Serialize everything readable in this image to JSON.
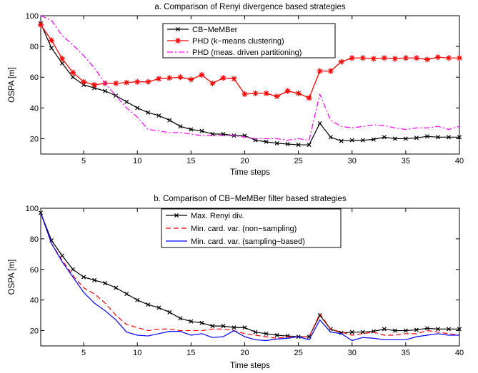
{
  "chart_data": [
    {
      "type": "line",
      "title": "a. Comparison of Renyi divergence based strategies",
      "xlabel": "Time steps",
      "ylabel": "OSPA [m]",
      "xlim": [
        1,
        40
      ],
      "ylim": [
        10,
        100
      ],
      "xticks": [
        5,
        10,
        15,
        20,
        25,
        30,
        35,
        40
      ],
      "yticks": [
        20,
        40,
        60,
        80,
        100
      ],
      "grid": false,
      "legend_position": "top-center",
      "x": [
        1,
        2,
        3,
        4,
        5,
        6,
        7,
        8,
        9,
        10,
        11,
        12,
        13,
        14,
        15,
        16,
        17,
        18,
        19,
        20,
        21,
        22,
        23,
        24,
        25,
        26,
        27,
        28,
        29,
        30,
        31,
        32,
        33,
        34,
        35,
        36,
        37,
        38,
        39,
        40
      ],
      "series": [
        {
          "name": "CB−MeMBer",
          "color": "#000000",
          "dash": "solid",
          "marker": "x",
          "values": [
            95,
            79,
            69,
            60,
            55,
            53,
            51,
            48,
            44,
            40,
            37,
            35,
            32,
            28,
            26,
            25,
            23,
            23,
            22,
            22,
            19,
            18,
            17,
            16.5,
            16,
            16,
            30,
            21,
            18.5,
            19,
            19,
            19.5,
            21,
            20,
            20,
            20.5,
            21.5,
            21,
            21,
            21
          ]
        },
        {
          "name": "PHD (k−means clustering)",
          "color": "#ff0000",
          "dash": "solid",
          "marker": "star",
          "values": [
            94,
            84,
            72,
            63,
            57,
            55,
            56,
            56,
            56.5,
            57,
            57,
            59,
            59.5,
            60,
            58.5,
            61.5,
            56,
            59.5,
            59,
            49,
            49.5,
            49.5,
            47.5,
            51,
            49.5,
            46.5,
            64,
            64,
            70,
            72.5,
            72.5,
            72,
            72.5,
            72,
            72.5,
            72.5,
            71.5,
            73,
            72.5,
            72.5
          ]
        },
        {
          "name": "PHD (meas. driven partitioning)",
          "color": "#ff00ff",
          "dash": "dashdot",
          "marker": "none",
          "values": [
            100,
            97,
            87,
            81,
            74,
            66,
            56,
            48,
            40,
            34,
            26,
            25,
            24,
            24,
            23,
            22,
            22,
            22,
            22,
            21,
            20,
            20,
            20,
            19,
            20,
            19,
            49,
            32,
            28,
            27,
            28,
            29,
            28.5,
            27,
            26,
            27,
            27,
            28,
            26,
            28
          ]
        }
      ]
    },
    {
      "type": "line",
      "title": "b. Comparison of CB−MeMBer filter based strategies",
      "xlabel": "Time steps",
      "ylabel": "OSPA [m]",
      "xlim": [
        1,
        40
      ],
      "ylim": [
        10,
        100
      ],
      "xticks": [
        5,
        10,
        15,
        20,
        25,
        30,
        35,
        40
      ],
      "yticks": [
        20,
        40,
        60,
        80,
        100
      ],
      "grid": false,
      "legend_position": "top-center",
      "x": [
        1,
        2,
        3,
        4,
        5,
        6,
        7,
        8,
        9,
        10,
        11,
        12,
        13,
        14,
        15,
        16,
        17,
        18,
        19,
        20,
        21,
        22,
        23,
        24,
        25,
        26,
        27,
        28,
        29,
        30,
        31,
        32,
        33,
        34,
        35,
        36,
        37,
        38,
        39,
        40
      ],
      "series": [
        {
          "name": "Max. Renyi div.",
          "color": "#000000",
          "dash": "solid",
          "marker": "x",
          "values": [
            97,
            79,
            69,
            60,
            55,
            53,
            51,
            48,
            44,
            40,
            37,
            35,
            32,
            28,
            26,
            25,
            23,
            23,
            22,
            22,
            19,
            18,
            17,
            16.5,
            16,
            16,
            30,
            21,
            18.5,
            19,
            19,
            19.5,
            21,
            20,
            20,
            20.5,
            21.5,
            21,
            21,
            21
          ]
        },
        {
          "name": "Min. card. var. (non−sampling)",
          "color": "#ff0000",
          "dash": "dashed",
          "marker": "none",
          "values": [
            97,
            77,
            66,
            56,
            48,
            44,
            38,
            30,
            24,
            22,
            20,
            21,
            21,
            20,
            20,
            20,
            21,
            21,
            20,
            18,
            17,
            16,
            15,
            16,
            16,
            16,
            31,
            21,
            19,
            17,
            18,
            19,
            17,
            17,
            18,
            18,
            20,
            19,
            18,
            17
          ]
        },
        {
          "name": "Min. card. var. (sampling−based)",
          "color": "#0000ff",
          "dash": "solid",
          "marker": "none",
          "values": [
            97,
            77,
            65,
            55,
            45,
            38,
            33,
            27,
            19,
            17,
            16.5,
            18,
            19.5,
            19.5,
            17,
            18,
            15.5,
            16,
            20,
            16,
            14,
            13.5,
            14.5,
            15,
            16,
            14,
            27,
            19,
            18,
            13.5,
            15.5,
            15,
            14,
            14,
            14,
            16,
            17,
            18,
            17,
            17
          ]
        }
      ]
    }
  ]
}
